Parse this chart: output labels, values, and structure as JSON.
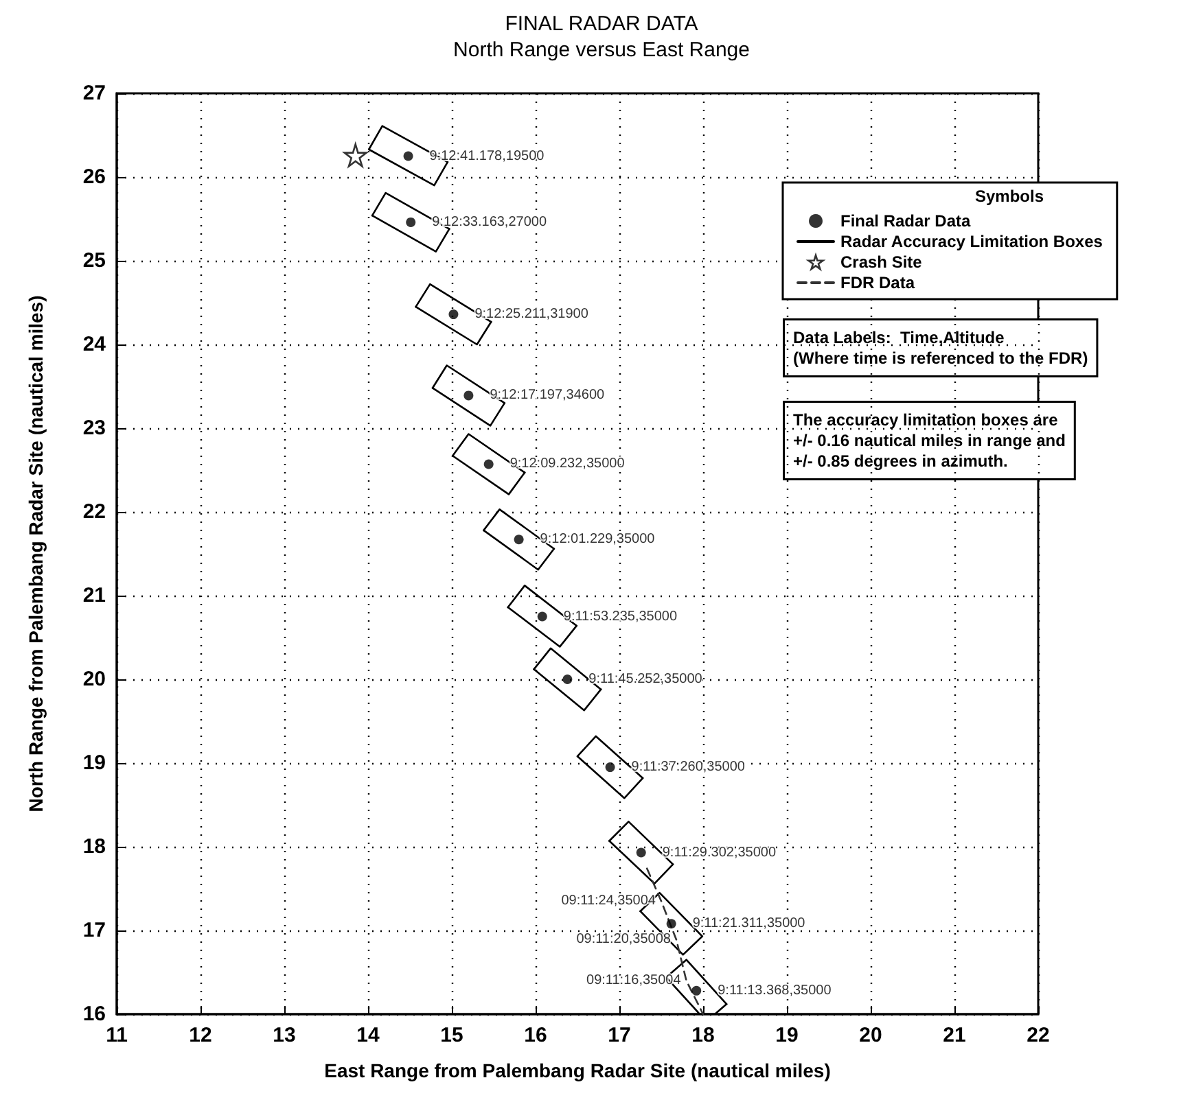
{
  "chart_data": {
    "type": "scatter",
    "title": "FINAL RADAR DATA",
    "subtitle": "North Range versus East Range",
    "xlabel": "East Range from Palembang Radar Site (nautical miles)",
    "ylabel": "North Range from Palembang Radar Site (nautical miles)",
    "xlim": [
      11,
      22
    ],
    "ylim": [
      16,
      27
    ],
    "xticks": [
      11,
      12,
      13,
      14,
      15,
      16,
      17,
      18,
      19,
      20,
      21,
      22
    ],
    "yticks": [
      16,
      17,
      18,
      19,
      20,
      21,
      22,
      23,
      24,
      25,
      26,
      27
    ],
    "grid": true,
    "legend": "top right",
    "legend_title": "Symbols",
    "series": [
      {
        "name": "Final Radar Data",
        "marker": "circle",
        "color": "#000000",
        "x": [
          14.48,
          14.51,
          15.02,
          15.2,
          15.44,
          15.8,
          16.08,
          16.38,
          16.89,
          17.26,
          17.62,
          17.92
        ],
        "values": [
          26.25,
          25.46,
          24.36,
          23.39,
          22.57,
          21.67,
          20.75,
          20.0,
          18.95,
          17.93,
          17.08,
          16.28
        ],
        "value_labels": [
          "9:12:41.178,19500",
          "9:12:33.163,27000",
          "9:12:25.211,31900",
          "9:12:17.197,34600",
          "9:12:09.232,35000",
          "9:12:01.229,35000",
          "9:11:53.235,35000",
          "9:11:45.252,35000",
          "9:11:37.260,35000",
          "9:11:29.302,35000",
          "9:11:21.311,35000",
          "9:11:13.368,35000"
        ]
      },
      {
        "name": "Radar Accuracy Limitation Boxes",
        "type": "line",
        "line_style": "solid",
        "color": "#000000",
        "x": [
          14.01,
          14.17,
          14.95
        ],
        "values": [
          26.33,
          26.61,
          26.18
        ]
      },
      {
        "type": "line",
        "line_style": "solid",
        "color": "#000000",
        "x": [
          14.01,
          14.79,
          14.95
        ],
        "values": [
          26.33,
          25.9,
          26.18
        ]
      },
      {
        "type": "line",
        "line_style": "solid",
        "color": "#000000",
        "x": [
          14.05,
          14.21,
          14.97
        ],
        "values": [
          25.54,
          25.81,
          25.38
        ]
      },
      {
        "type": "line",
        "line_style": "solid",
        "color": "#000000",
        "x": [
          14.05,
          14.81,
          14.97
        ],
        "values": [
          25.54,
          25.11,
          25.38
        ]
      },
      {
        "type": "line",
        "line_style": "solid",
        "color": "#000000",
        "x": [
          14.57,
          14.74,
          15.47
        ],
        "values": [
          24.45,
          24.72,
          24.27
        ]
      },
      {
        "type": "line",
        "line_style": "solid",
        "color": "#000000",
        "x": [
          14.57,
          15.3,
          15.47
        ],
        "values": [
          24.45,
          24.0,
          24.27
        ]
      },
      {
        "type": "line",
        "line_style": "solid",
        "color": "#000000",
        "x": [
          14.77,
          14.94,
          15.63
        ],
        "values": [
          23.48,
          23.75,
          23.3
        ]
      },
      {
        "type": "line",
        "line_style": "solid",
        "color": "#000000",
        "x": [
          14.77,
          15.46,
          15.63
        ],
        "values": [
          23.48,
          23.03,
          23.3
        ]
      },
      {
        "type": "line",
        "line_style": "solid",
        "color": "#000000",
        "x": [
          15.01,
          15.2,
          15.87
        ],
        "values": [
          22.67,
          22.93,
          22.47
        ]
      },
      {
        "type": "line",
        "line_style": "solid",
        "color": "#000000",
        "x": [
          15.01,
          15.68,
          15.87
        ],
        "values": [
          22.67,
          22.21,
          22.47
        ]
      },
      {
        "type": "line",
        "line_style": "solid",
        "color": "#000000",
        "x": [
          15.38,
          15.57,
          16.22
        ],
        "values": [
          21.78,
          22.03,
          21.56
        ]
      },
      {
        "type": "line",
        "line_style": "solid",
        "color": "#000000",
        "x": [
          15.38,
          16.03,
          16.22
        ],
        "values": [
          21.78,
          21.31,
          21.56
        ]
      },
      {
        "type": "line",
        "line_style": "solid",
        "color": "#000000",
        "x": [
          15.67,
          15.87,
          16.49
        ],
        "values": [
          20.86,
          21.12,
          20.64
        ]
      },
      {
        "type": "line",
        "line_style": "solid",
        "color": "#000000",
        "x": [
          15.67,
          16.29,
          16.49
        ],
        "values": [
          20.86,
          20.39,
          20.64
        ]
      },
      {
        "type": "line",
        "line_style": "solid",
        "color": "#000000",
        "x": [
          15.98,
          16.18,
          16.78
        ],
        "values": [
          20.12,
          20.37,
          19.88
        ]
      },
      {
        "type": "line",
        "line_style": "solid",
        "color": "#000000",
        "x": [
          15.98,
          16.58,
          16.78
        ],
        "values": [
          20.12,
          19.63,
          19.88
        ]
      },
      {
        "type": "line",
        "line_style": "solid",
        "color": "#000000",
        "x": [
          16.5,
          16.72,
          17.28
        ],
        "values": [
          19.08,
          19.32,
          18.82
        ]
      },
      {
        "type": "line",
        "line_style": "solid",
        "color": "#000000",
        "x": [
          16.5,
          17.06,
          17.28
        ],
        "values": [
          19.08,
          18.58,
          18.82
        ]
      },
      {
        "type": "line",
        "line_style": "solid",
        "color": "#000000",
        "x": [
          16.88,
          17.11,
          17.64
        ],
        "values": [
          18.07,
          18.3,
          17.79
        ]
      },
      {
        "type": "line",
        "line_style": "solid",
        "color": "#000000",
        "x": [
          16.88,
          17.42,
          17.64
        ],
        "values": [
          18.07,
          17.56,
          17.79
        ]
      },
      {
        "type": "line",
        "line_style": "solid",
        "color": "#000000",
        "x": [
          17.25,
          17.48,
          17.99
        ],
        "values": [
          17.23,
          17.45,
          16.93
        ]
      },
      {
        "type": "line",
        "line_style": "solid",
        "color": "#000000",
        "x": [
          17.25,
          17.76,
          17.99
        ],
        "values": [
          17.23,
          16.71,
          16.93
        ]
      },
      {
        "type": "line",
        "line_style": "solid",
        "color": "#000000",
        "x": [
          17.56,
          17.8,
          18.28
        ],
        "values": [
          16.44,
          16.65,
          16.12
        ]
      },
      {
        "type": "line",
        "line_style": "solid",
        "color": "#000000",
        "x": [
          17.56,
          17.96,
          18.14,
          18.28
        ],
        "values": [
          16.44,
          16.0,
          16.0,
          16.12
        ]
      },
      {
        "name": "Crash Site",
        "marker": "star",
        "color": "#000000",
        "x": [
          13.85
        ],
        "values": [
          26.26
        ]
      },
      {
        "name": "FDR Data",
        "type": "line",
        "line_style": "dashed",
        "color": "#333333",
        "x": [
          17.33,
          17.5,
          17.68,
          17.8,
          18.0
        ],
        "values": [
          17.74,
          17.35,
          16.89,
          16.4,
          16.0
        ]
      }
    ],
    "annotations": [
      "Data Labels:  Time,Altitude\n(Where time is referenced to the FDR)",
      "The accuracy limitation boxes are\n+/- 0.16 nautical miles in range and\n+/- 0.85 degrees in azimuth.",
      {
        "text": "09:11:24,35004",
        "x": 17.5,
        "y": 17.35
      },
      {
        "text": "09:11:20,35008",
        "x": 17.68,
        "y": 16.89
      },
      {
        "text": "09:11:16,35004",
        "x": 17.8,
        "y": 16.4
      }
    ]
  }
}
